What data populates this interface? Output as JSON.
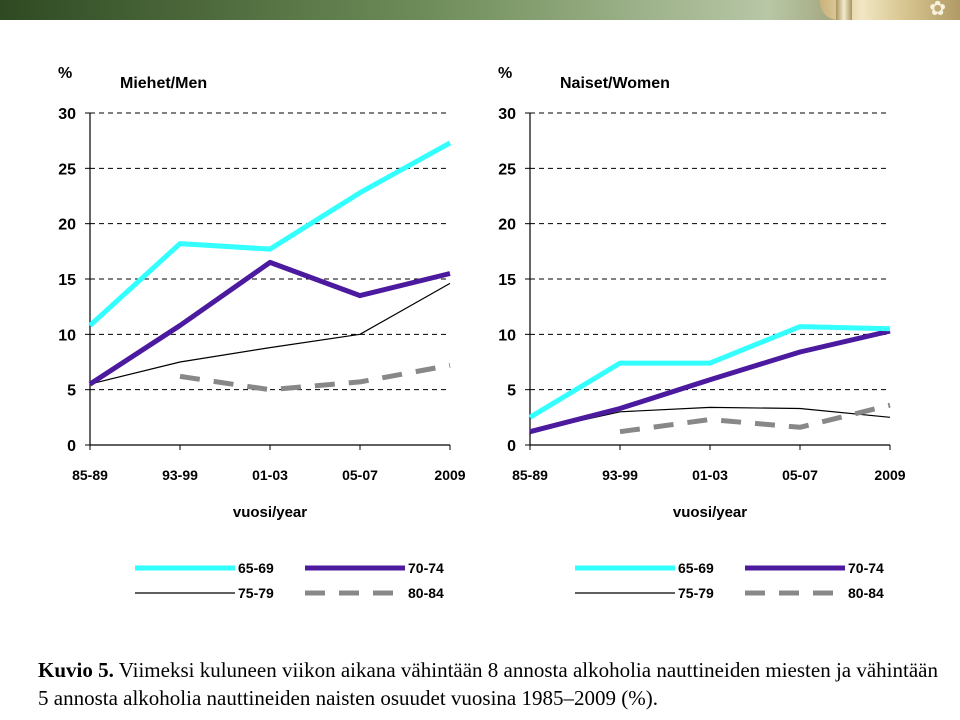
{
  "chart_data": [
    {
      "type": "line",
      "title": "Miehet/Men",
      "unit": "%",
      "xlabel": "vuosi/year",
      "categories": [
        "85-89",
        "93-99",
        "01-03",
        "05-07",
        "2009"
      ],
      "ylim": [
        0,
        30
      ],
      "yticks": [
        0,
        5,
        10,
        15,
        20,
        25,
        30
      ],
      "grid": "dashed horizontal",
      "legend": "bottom",
      "series": [
        {
          "name": "65-69",
          "color": "#33ffff",
          "style": "thick-solid",
          "values": [
            10.8,
            18.2,
            17.7,
            22.8,
            27.3
          ]
        },
        {
          "name": "70-74",
          "color": "#4b1a9e",
          "style": "thick-solid",
          "values": [
            5.5,
            10.8,
            16.5,
            13.5,
            15.5
          ]
        },
        {
          "name": "75-79",
          "color": "#000000",
          "style": "thin-solid",
          "values": [
            5.5,
            7.5,
            8.8,
            10.0,
            14.6
          ]
        },
        {
          "name": "80-84",
          "color": "#888888",
          "style": "thick-dashed",
          "values": [
            null,
            6.2,
            5.0,
            5.7,
            7.2
          ]
        }
      ]
    },
    {
      "type": "line",
      "title": "Naiset/Women",
      "unit": "%",
      "xlabel": "vuosi/year",
      "categories": [
        "85-89",
        "93-99",
        "01-03",
        "05-07",
        "2009"
      ],
      "ylim": [
        0,
        30
      ],
      "yticks": [
        0,
        5,
        10,
        15,
        20,
        25,
        30
      ],
      "grid": "dashed horizontal",
      "legend": "bottom",
      "series": [
        {
          "name": "65-69",
          "color": "#33ffff",
          "style": "thick-solid",
          "values": [
            2.5,
            7.4,
            7.4,
            10.7,
            10.5
          ]
        },
        {
          "name": "70-74",
          "color": "#4b1a9e",
          "style": "thick-solid",
          "values": [
            1.2,
            3.3,
            5.9,
            8.4,
            10.3
          ]
        },
        {
          "name": "75-79",
          "color": "#000000",
          "style": "thin-solid",
          "values": [
            1.2,
            3.0,
            3.4,
            3.3,
            2.5
          ]
        },
        {
          "name": "80-84",
          "color": "#888888",
          "style": "thick-dashed",
          "values": [
            null,
            1.2,
            2.3,
            1.6,
            3.6
          ]
        }
      ]
    }
  ],
  "caption": {
    "label": "Kuvio 5.",
    "text": "Viimeksi kuluneen viikon aikana vähintään 8 annosta alkoholia nauttineiden miesten ja vähintään 5 annosta alkoholia nauttineiden naisten osuudet vuosina 1985–2009 (%)."
  },
  "header": {
    "flower_icon": "flower-icon"
  }
}
